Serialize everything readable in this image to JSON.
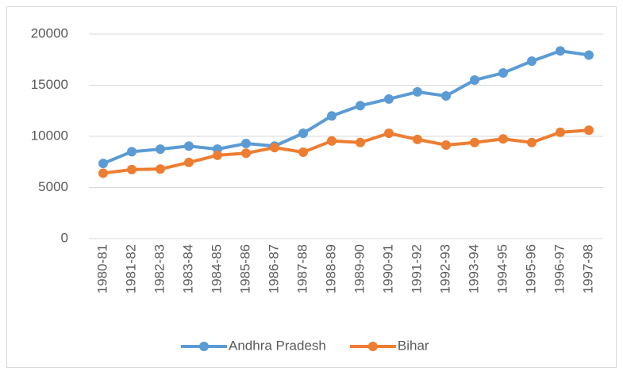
{
  "chart_data": {
    "type": "line",
    "categories": [
      "1980-81",
      "1981-82",
      "1982-83",
      "1983-84",
      "1984-85",
      "1985-86",
      "1986-87",
      "1987-88",
      "1988-89",
      "1989-90",
      "1990-91",
      "1991-92",
      "1992-93",
      "1993-94",
      "1994-95",
      "1995-96",
      "1996-97",
      "1997-98"
    ],
    "series": [
      {
        "name": "Andhra Pradesh",
        "color": "#5b9bd5",
        "values": [
          7350,
          8500,
          8750,
          9050,
          8750,
          9300,
          9050,
          10300,
          12000,
          13000,
          13650,
          14350,
          13950,
          15500,
          16200,
          17350,
          18350,
          17950
        ]
      },
      {
        "name": "Bihar",
        "color": "#ed7d31",
        "values": [
          6400,
          6750,
          6800,
          7450,
          8150,
          8350,
          8900,
          8450,
          9550,
          9400,
          10300,
          9700,
          9150,
          9400,
          9750,
          9400,
          10400,
          10600
        ]
      }
    ],
    "ylim": [
      0,
      20000
    ],
    "yticks": [
      0,
      5000,
      10000,
      15000,
      20000
    ],
    "grid": true,
    "legend": "bottom"
  }
}
